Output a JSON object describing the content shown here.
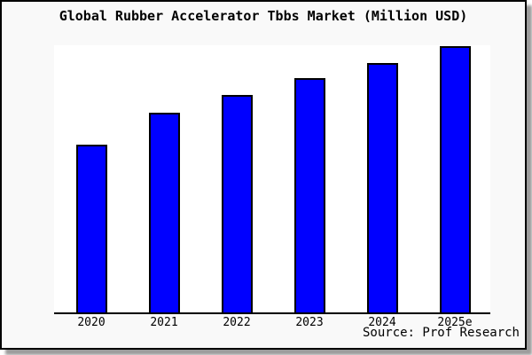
{
  "window": {
    "background_color": "#f9f9f9",
    "plot_background_color": "#ffffff",
    "frame_border_color": "#000000",
    "shadow_color": "#9c9c9c"
  },
  "chart_data": {
    "type": "bar",
    "title": "Global Rubber Accelerator Tbbs Market (Million USD)",
    "xlabel": "",
    "ylabel": "",
    "categories": [
      "2020",
      "2021",
      "2022",
      "2023",
      "2024",
      "2025e"
    ],
    "values_relative_pct_of_max": [
      63,
      75,
      82,
      88,
      94,
      100
    ],
    "values_pct_of_plot_height": [
      62.7,
      74.9,
      81.5,
      87.8,
      93.4,
      99.7
    ],
    "y_axis_ticks_visible": false,
    "gridlines": false,
    "legend_position": "none",
    "bar_color": "#0000ff",
    "bar_border_color": "#000000",
    "axis_line_color": "#000000",
    "source_note": "Source: Prof Research"
  }
}
